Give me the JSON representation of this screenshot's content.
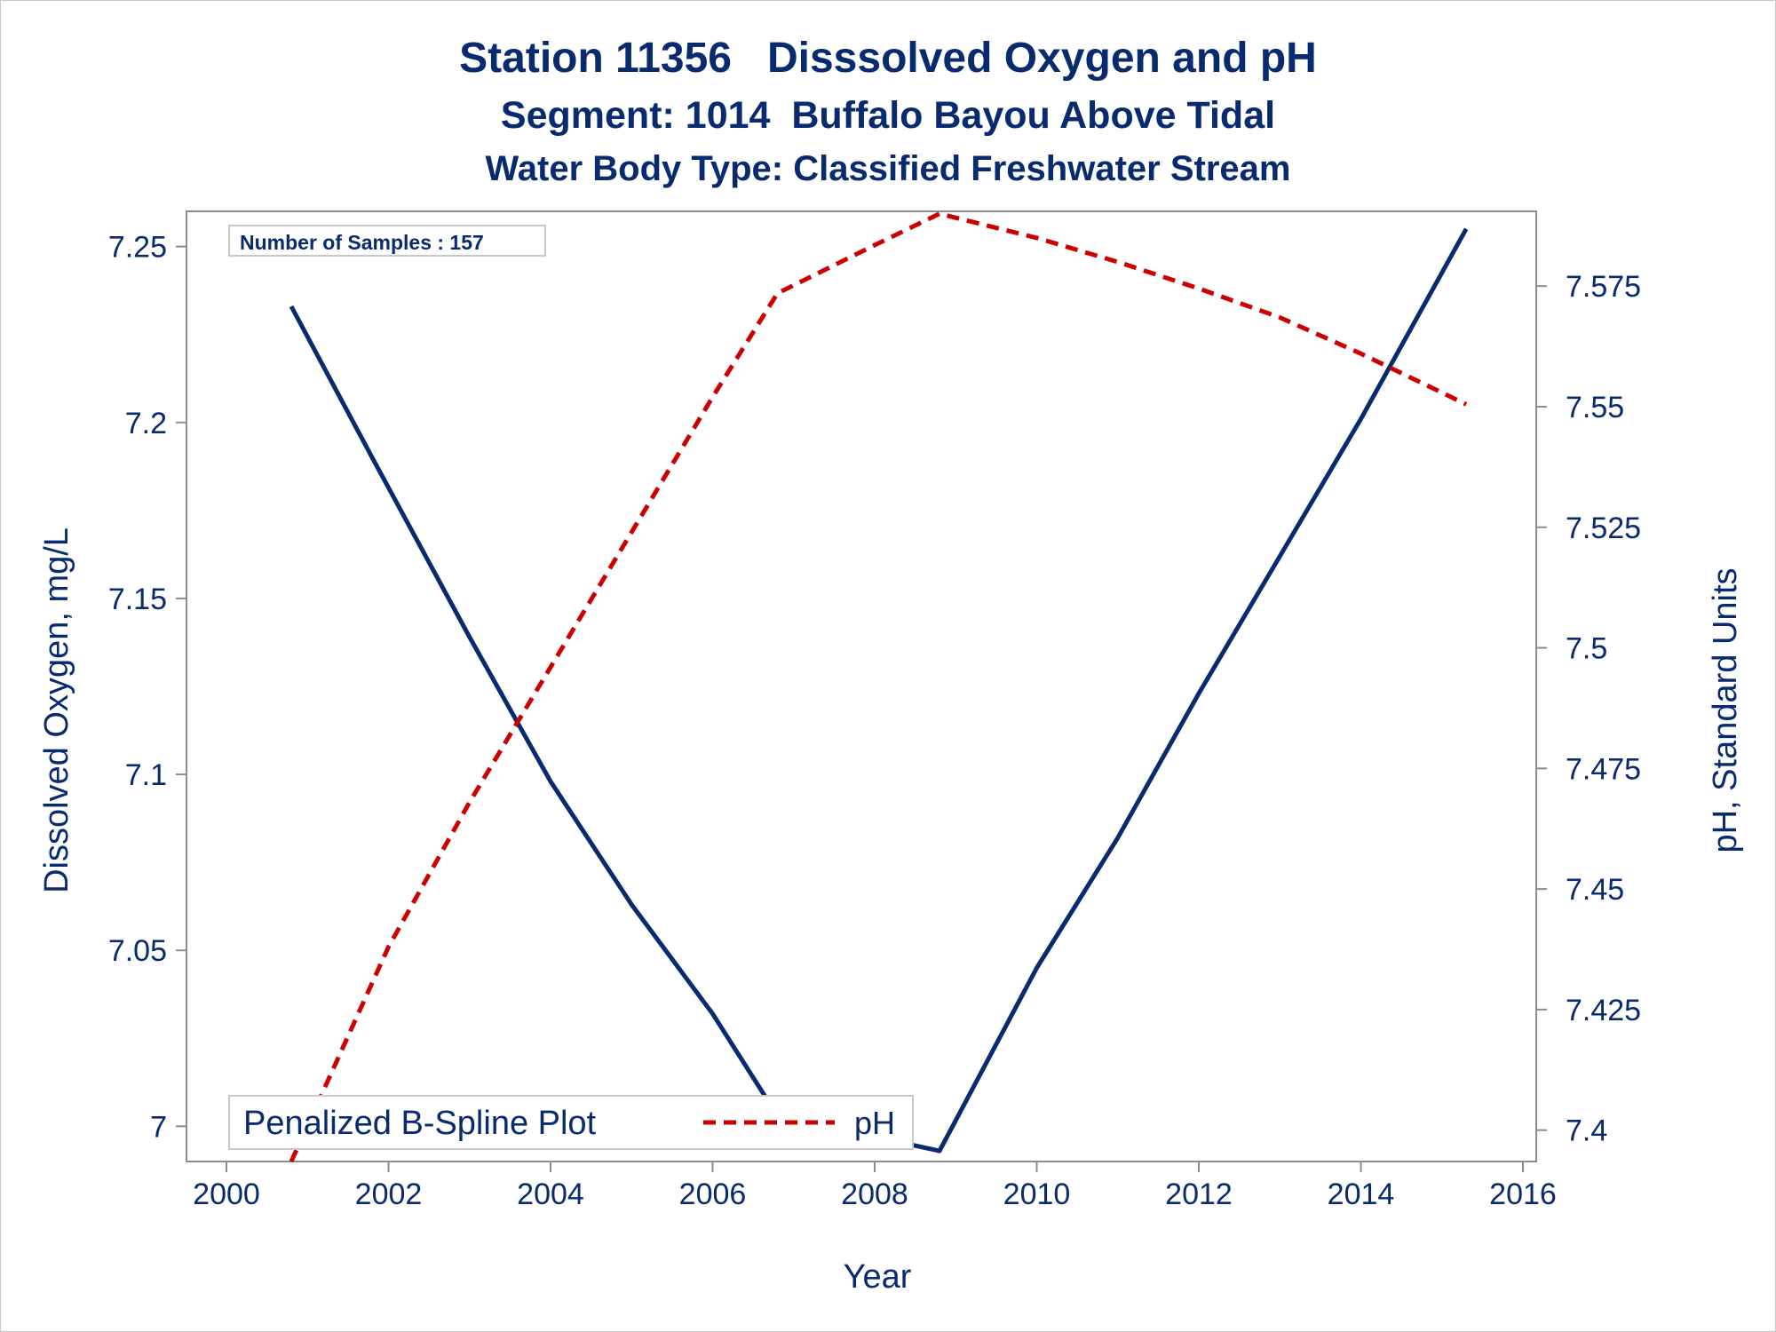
{
  "titles": {
    "line1": "Station 11356   Disssolved Oxygen and pH",
    "line2": "Segment: 1014  Buffalo Bayou Above Tidal",
    "line3": "Water Body Type: Classified Freshwater Stream"
  },
  "annotation": "Number of Samples : 157",
  "colors": {
    "text": "#082a6f",
    "do_line": "#082a6f",
    "ph_line": "#cc0000",
    "axis": "#8c8c8c"
  },
  "chart_data": {
    "type": "line",
    "xlabel": "Year",
    "ylabel": "Dissolved Oxygen, mg/L",
    "y2label": "pH, Standard Units",
    "xlim": [
      2000,
      2016
    ],
    "ylim": [
      6.99,
      7.26
    ],
    "y2lim": [
      7.3935,
      7.5905
    ],
    "x_ticks": [
      "2000",
      "2002",
      "2004",
      "2006",
      "2008",
      "2010",
      "2012",
      "2014",
      "2016"
    ],
    "y_ticks": [
      "7",
      "7.05",
      "7.1",
      "7.15",
      "7.2",
      "7.25"
    ],
    "y2_ticks": [
      "7.4",
      "7.425",
      "7.45",
      "7.475",
      "7.5",
      "7.525",
      "7.55",
      "7.575"
    ],
    "legend": {
      "title": "Penalized B-Spline Plot",
      "entry": "pH",
      "position": "bottom-left"
    },
    "grid": false,
    "series": [
      {
        "axis": "left",
        "style": "solid",
        "x": [
          2000.8,
          2001.8,
          2003.0,
          2004.0,
          2005.0,
          2006.0,
          2006.8,
          2007.8,
          2008.8,
          2010.0,
          2011.0,
          2012.0,
          2013.0,
          2014.0,
          2015.3
        ],
        "values": [
          7.233,
          7.19,
          7.139,
          7.098,
          7.063,
          7.032,
          7.003,
          6.998,
          6.993,
          7.045,
          7.082,
          7.123,
          7.162,
          7.201,
          7.255
        ]
      },
      {
        "name": "pH",
        "axis": "right",
        "style": "dashed",
        "x": [
          2000.8,
          2002.0,
          2003.0,
          2004.0,
          2005.0,
          2006.0,
          2006.8,
          2008.0,
          2008.8,
          2010.0,
          2011.0,
          2012.0,
          2013.0,
          2014.0,
          2015.3
        ],
        "values": [
          7.3935,
          7.438,
          7.468,
          7.496,
          7.524,
          7.552,
          7.5735,
          7.5835,
          7.59,
          7.585,
          7.58,
          7.5745,
          7.5685,
          7.561,
          7.5505
        ]
      }
    ]
  }
}
